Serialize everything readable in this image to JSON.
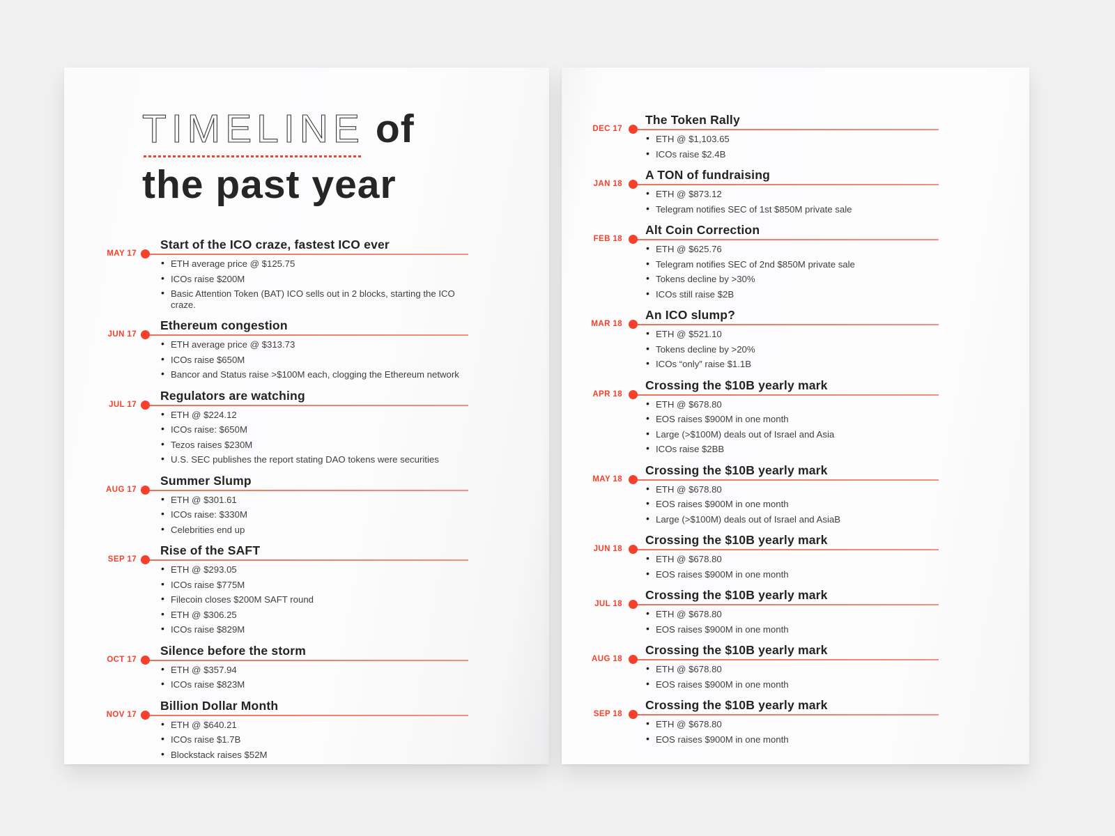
{
  "colors": {
    "accent": "#f5412b",
    "line": "#ef7059"
  },
  "heading": {
    "outline_word": "TIMELINE",
    "bold_word": "of",
    "second_line": "the past year"
  },
  "pages": [
    {
      "side": "left",
      "entries": [
        {
          "date": "MAY 17",
          "title": "Start of the ICO craze, fastest ICO ever",
          "bullets": [
            "ETH average price @ $125.75",
            "ICOs raise $200M",
            "Basic Attention Token (BAT) ICO sells out in 2 blocks, starting the ICO craze."
          ]
        },
        {
          "date": "JUN 17",
          "title": "Ethereum congestion",
          "bullets": [
            "ETH average price @ $313.73",
            "ICOs raise $650M",
            "Bancor and Status raise >$100M each, clogging the Ethereum network"
          ]
        },
        {
          "date": "JUL 17",
          "title": "Regulators are watching",
          "bullets": [
            "ETH @ $224.12",
            "ICOs raise: $650M",
            "Tezos raises $230M",
            "U.S. SEC publishes the report stating DAO tokens were securities"
          ]
        },
        {
          "date": "AUG 17",
          "title": "Summer Slump",
          "bullets": [
            "ETH @ $301.61",
            "ICOs raise: $330M",
            "Celebrities end up"
          ]
        },
        {
          "date": "SEP 17",
          "title": "Rise of the SAFT",
          "bullets": [
            "ETH @ $293.05",
            "ICOs raise $775M",
            "Filecoin closes $200M SAFT round",
            "ETH @ $306.25",
            "ICOs raise $829M"
          ]
        },
        {
          "date": "OCT 17",
          "title": "Silence before the storm",
          "bullets": [
            "ETH @ $357.94",
            "ICOs raise $823M"
          ]
        },
        {
          "date": "NOV 17",
          "title": "Billion Dollar Month",
          "bullets": [
            "ETH @ $640.21",
            "ICOs raise $1.7B",
            "Blockstack raises $52M"
          ]
        }
      ]
    },
    {
      "side": "right",
      "entries": [
        {
          "date": "DEC 17",
          "title": "The Token Rally",
          "bullets": [
            "ETH @ $1,103.65",
            "ICOs raise $2.4B"
          ]
        },
        {
          "date": "JAN 18",
          "title": "A TON of fundraising",
          "bullets": [
            "ETH @ $873.12",
            "Telegram notifies SEC of 1st $850M private sale"
          ]
        },
        {
          "date": "FEB 18",
          "title": "Alt Coin Correction",
          "bullets": [
            "ETH @ $625.76",
            "Telegram notifies SEC of 2nd $850M private sale",
            "Tokens decline by >30%",
            "ICOs still raise $2B"
          ]
        },
        {
          "date": "MAR 18",
          "title": "An ICO slump?",
          "bullets": [
            "ETH @ $521.10",
            "Tokens decline by >20%",
            "ICOs “only” raise $1.1B"
          ]
        },
        {
          "date": "APR 18",
          "title": "Crossing the $10B yearly mark",
          "bullets": [
            "ETH @ $678.80",
            "EOS raises $900M in one month",
            "Large (>$100M) deals out of Israel and Asia",
            "ICOs raise $2BB"
          ]
        },
        {
          "date": "MAY 18",
          "title": "Crossing the $10B yearly mark",
          "bullets": [
            "ETH @ $678.80",
            "EOS raises $900M in one month",
            "Large (>$100M) deals out of Israel and AsiaB"
          ]
        },
        {
          "date": "JUN 18",
          "title": "Crossing the $10B yearly mark",
          "bullets": [
            "ETH @ $678.80",
            "EOS raises $900M in one month"
          ]
        },
        {
          "date": "JUL 18",
          "title": "Crossing the $10B yearly mark",
          "bullets": [
            "ETH @ $678.80",
            "EOS raises $900M in one month"
          ]
        },
        {
          "date": "AUG 18",
          "title": "Crossing the $10B yearly mark",
          "bullets": [
            "ETH @ $678.80",
            "EOS raises $900M in one month"
          ]
        },
        {
          "date": "SEP 18",
          "title": "Crossing the $10B yearly mark",
          "bullets": [
            "ETH @ $678.80",
            "EOS raises $900M in one month"
          ]
        }
      ]
    }
  ]
}
